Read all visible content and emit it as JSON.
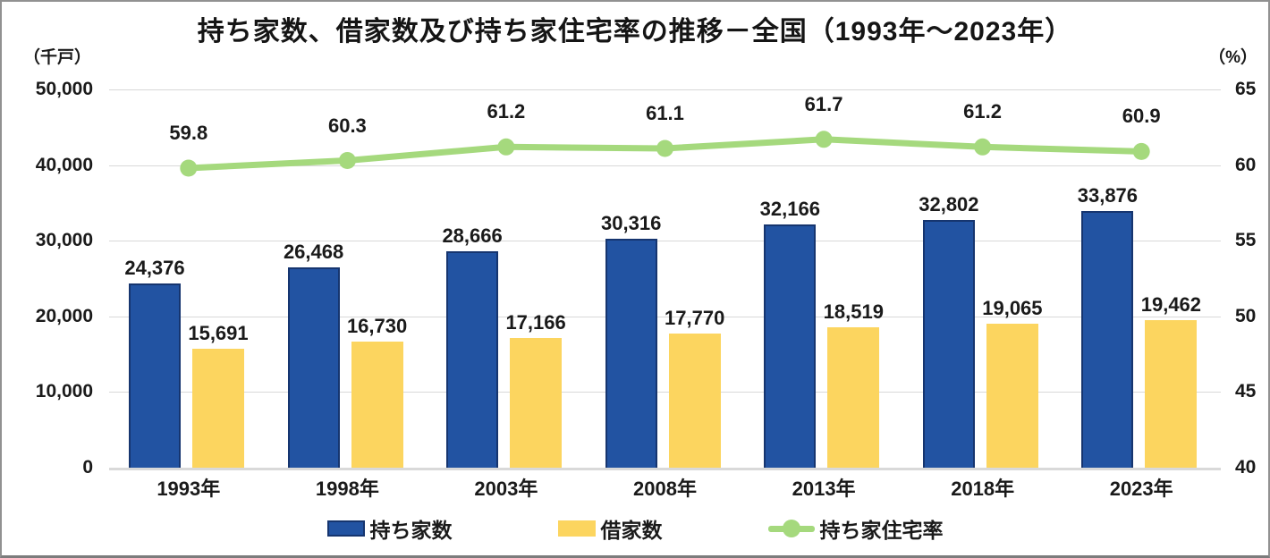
{
  "chart_data": {
    "type": "combo-bar-line",
    "title": "持ち家数、借家数及び持ち家住宅率の推移－全国（1993年～2023年）",
    "categories": [
      "1993年",
      "1998年",
      "2003年",
      "2008年",
      "2013年",
      "2018年",
      "2023年"
    ],
    "left_axis": {
      "unit": "（千戸）",
      "min": 0,
      "max": 50000,
      "step": 10000,
      "ticks": [
        "50,000",
        "40,000",
        "30,000",
        "20,000",
        "10,000",
        "0"
      ]
    },
    "right_axis": {
      "unit": "（%）",
      "min": 40,
      "max": 65,
      "step": 5,
      "ticks": [
        "65",
        "60",
        "55",
        "50",
        "45",
        "40"
      ]
    },
    "series": [
      {
        "name": "持ち家数",
        "key": "owned-homes",
        "type": "bar",
        "color": "#2253A2",
        "border_color": "#16356F",
        "values": [
          24376,
          26468,
          28666,
          30316,
          32166,
          32802,
          33876
        ],
        "labels": [
          "24,376",
          "26,468",
          "28,666",
          "30,316",
          "32,166",
          "32,802",
          "33,876"
        ]
      },
      {
        "name": "借家数",
        "key": "rented-homes",
        "type": "bar",
        "color": "#FCD55F",
        "border_color": "#FCD55F",
        "values": [
          15691,
          16730,
          17166,
          17770,
          18519,
          19065,
          19462
        ],
        "labels": [
          "15,691",
          "16,730",
          "17,166",
          "17,770",
          "18,519",
          "19,065",
          "19,462"
        ]
      },
      {
        "name": "持ち家住宅率",
        "key": "ownership-rate",
        "type": "line",
        "axis": "right",
        "color": "#A5D97D",
        "values": [
          59.8,
          60.3,
          61.2,
          61.1,
          61.7,
          61.2,
          60.9
        ],
        "labels": [
          "59.8",
          "60.3",
          "61.2",
          "61.1",
          "61.7",
          "61.2",
          "60.9"
        ]
      }
    ],
    "legend_position": "bottom",
    "grid": true,
    "text_color": "#1a1a1a",
    "grid_color": "#d8d8d8"
  }
}
